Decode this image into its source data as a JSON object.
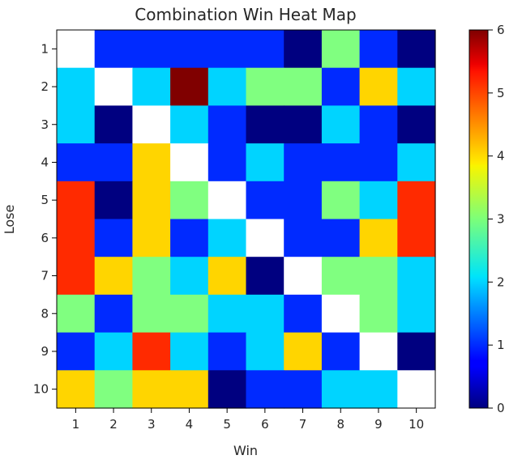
{
  "chart_data": {
    "type": "heatmap",
    "title": "Combination Win Heat Map",
    "xlabel": "Win",
    "ylabel": "Lose",
    "x_categories": [
      "1",
      "2",
      "3",
      "4",
      "5",
      "6",
      "7",
      "8",
      "9",
      "10"
    ],
    "y_categories": [
      "1",
      "2",
      "3",
      "4",
      "5",
      "6",
      "7",
      "8",
      "9",
      "10"
    ],
    "values": [
      [
        null,
        1,
        1,
        1,
        1,
        1,
        0,
        3,
        1,
        0
      ],
      [
        2,
        null,
        2,
        6,
        2,
        3,
        3,
        1,
        4,
        2
      ],
      [
        2,
        0,
        null,
        2,
        1,
        0,
        0,
        2,
        1,
        0
      ],
      [
        1,
        1,
        4,
        null,
        1,
        2,
        1,
        1,
        1,
        2
      ],
      [
        5,
        0,
        4,
        3,
        null,
        1,
        1,
        3,
        2,
        5
      ],
      [
        5,
        1,
        4,
        1,
        2,
        null,
        1,
        1,
        4,
        5
      ],
      [
        5,
        4,
        3,
        2,
        4,
        0,
        null,
        3,
        3,
        2
      ],
      [
        3,
        1,
        3,
        3,
        2,
        2,
        1,
        null,
        3,
        2
      ],
      [
        1,
        2,
        5,
        2,
        1,
        2,
        4,
        1,
        null,
        0
      ],
      [
        4,
        3,
        4,
        4,
        0,
        1,
        1,
        2,
        2,
        null
      ]
    ],
    "colormap": "jet",
    "vmin": 0,
    "vmax": 6,
    "colorbar_ticks": [
      "0",
      "1",
      "2",
      "3",
      "4",
      "5",
      "6"
    ],
    "missing_color": "#ffffff",
    "grid": false,
    "legend": "colorbar-right"
  }
}
